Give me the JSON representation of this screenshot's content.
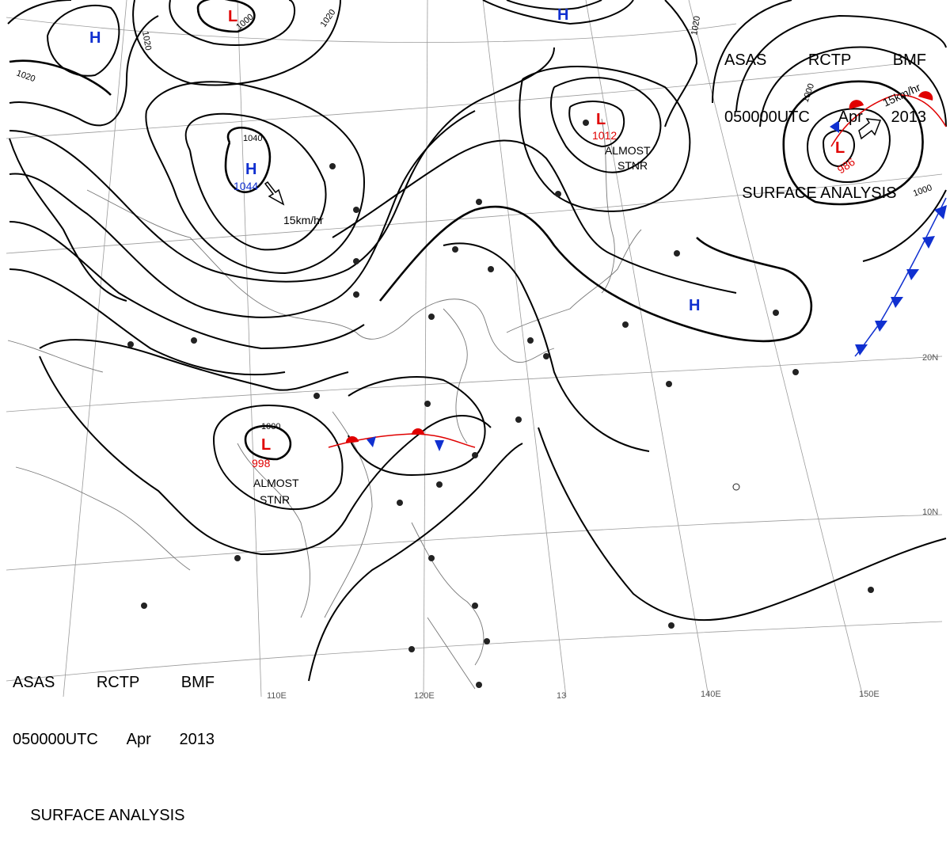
{
  "header": {
    "agency": "ASAS",
    "station": "RCTP",
    "code": "BMF",
    "time": "050000UTC",
    "month": "Apr",
    "year": "2013",
    "title": "SURFACE ANALYSIS"
  },
  "pressure_centers": [
    {
      "kind": "H",
      "color": "#1030d0",
      "pressure": ""
    },
    {
      "kind": "L",
      "color": "#e00000",
      "pressure": ""
    },
    {
      "kind": "H",
      "color": "#1030d0",
      "pressure": ""
    },
    {
      "kind": "H",
      "color": "#1030d0",
      "pressure": "1044"
    },
    {
      "kind": "L",
      "color": "#e00000",
      "pressure": "1012"
    },
    {
      "kind": "L",
      "color": "#e00000",
      "pressure": "986"
    },
    {
      "kind": "H",
      "color": "#1030d0",
      "pressure": ""
    },
    {
      "kind": "L",
      "color": "#e00000",
      "pressure": "998"
    }
  ],
  "motion_labels": [
    "15km/hr",
    "15km/hr"
  ],
  "stationary_labels": [
    {
      "l1": "ALMOST",
      "l2": "STNR"
    },
    {
      "l1": "ALMOST",
      "l2": "STNR"
    }
  ],
  "isobar_labels": [
    "1000",
    "1020",
    "1020",
    "1020",
    "1040",
    "1000",
    "1020",
    "1000",
    "1000"
  ],
  "lon_labels": [
    "110E",
    "120E",
    "13",
    "140E",
    "150E"
  ],
  "lat_labels": [
    "20N",
    "10N"
  ],
  "colors": {
    "high": "#1030d0",
    "low": "#e00000",
    "line": "#000000"
  }
}
